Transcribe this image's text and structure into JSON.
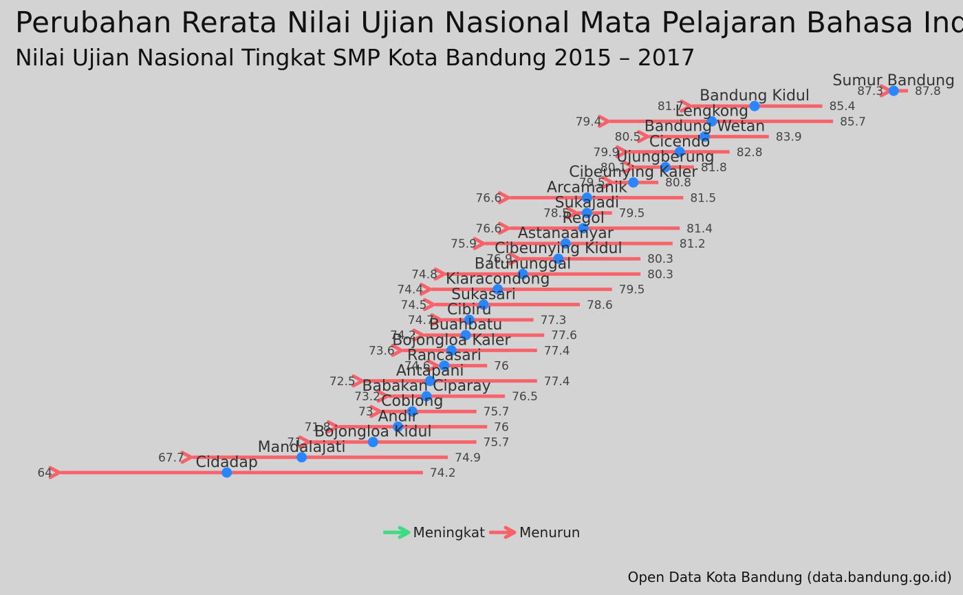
{
  "title": "Perubahan Rerata Nilai Ujian Nasional Mata Pelajaran Bahasa Indonesia",
  "subtitle": "Nilai Ujian Nasional Tingkat SMP Kota Bandung 2015 – 2017",
  "caption": "Open Data Kota Bandung (data.bandung.go.id)",
  "colors": {
    "meningkat": "#3ddc84",
    "menurun": "#f8636b",
    "point": "#2a86ff",
    "background": "#d3d3d3"
  },
  "legend": {
    "items": [
      {
        "label": "Meningkat",
        "color": "#3ddc84"
      },
      {
        "label": "Menurun",
        "color": "#f8636b"
      }
    ]
  },
  "chart_data": {
    "type": "dumbbell-arrow",
    "title": "Perubahan Rerata Nilai Ujian Nasional Mata Pelajaran Bahasa Indonesia",
    "subtitle": "Nilai Ujian Nasional Tingkat SMP Kota Bandung 2015 – 2017",
    "legend_position": "bottom",
    "grid": false,
    "xlim": [
      60,
      90
    ],
    "rows": [
      {
        "name": "Sumur Bandung",
        "start": 87.8,
        "end": 87.3,
        "mid": 87.4,
        "dir": "Menurun"
      },
      {
        "name": "Bandung Kidul",
        "start": 85.4,
        "end": 81.7,
        "mid": 83.5,
        "dir": "Menurun"
      },
      {
        "name": "Lengkong",
        "start": 85.7,
        "end": 79.4,
        "mid": 82.3,
        "dir": "Menurun"
      },
      {
        "name": "Bandung Wetan",
        "start": 83.9,
        "end": 80.5,
        "mid": 82.1,
        "dir": "Menurun"
      },
      {
        "name": "Cicendo",
        "start": 82.8,
        "end": 79.9,
        "mid": 81.4,
        "dir": "Menurun"
      },
      {
        "name": "Ujungberung",
        "start": 81.8,
        "end": 80.1,
        "mid": 81.0,
        "dir": "Menurun"
      },
      {
        "name": "Cibeunying Kaler",
        "start": 80.8,
        "end": 79.5,
        "mid": 80.1,
        "dir": "Menurun"
      },
      {
        "name": "Arcamanik",
        "start": 81.5,
        "end": 76.6,
        "mid": 78.8,
        "dir": "Menurun"
      },
      {
        "name": "Sukajadi",
        "start": 79.5,
        "end": 78.5,
        "mid": 78.8,
        "dir": "Menurun"
      },
      {
        "name": "Regol",
        "start": 81.4,
        "end": 76.6,
        "mid": 78.7,
        "dir": "Menurun"
      },
      {
        "name": "Astanaanyar",
        "start": 81.2,
        "end": 75.9,
        "mid": 78.2,
        "dir": "Menurun"
      },
      {
        "name": "Cibeunying Kidul",
        "start": 80.3,
        "end": 76.9,
        "mid": 78.0,
        "dir": "Menurun"
      },
      {
        "name": "Batununggal",
        "start": 80.3,
        "end": 74.8,
        "mid": 77.0,
        "dir": "Menurun"
      },
      {
        "name": "Kiaracondong",
        "start": 79.5,
        "end": 74.4,
        "mid": 76.3,
        "dir": "Menurun"
      },
      {
        "name": "Sukasari",
        "start": 78.6,
        "end": 74.5,
        "mid": 75.9,
        "dir": "Menurun"
      },
      {
        "name": "Cibiru",
        "start": 77.3,
        "end": 74.7,
        "mid": 75.5,
        "dir": "Menurun"
      },
      {
        "name": "Buahbatu",
        "start": 77.6,
        "end": 74.2,
        "mid": 75.4,
        "dir": "Menurun"
      },
      {
        "name": "Bojongloa Kaler",
        "start": 77.4,
        "end": 73.6,
        "mid": 75.0,
        "dir": "Menurun"
      },
      {
        "name": "Rancasari",
        "start": 76,
        "end": 74.6,
        "mid": 74.8,
        "dir": "Menurun"
      },
      {
        "name": "Antapani",
        "start": 77.4,
        "end": 72.5,
        "mid": 74.4,
        "dir": "Menurun"
      },
      {
        "name": "Babakan Ciparay",
        "start": 76.5,
        "end": 73.2,
        "mid": 74.3,
        "dir": "Menurun"
      },
      {
        "name": "Coblong",
        "start": 75.7,
        "end": 73,
        "mid": 73.9,
        "dir": "Menurun"
      },
      {
        "name": "Andir",
        "start": 76,
        "end": 71.8,
        "mid": 73.5,
        "dir": "Menurun"
      },
      {
        "name": "Bojongloa Kidul",
        "start": 75.7,
        "end": 71,
        "mid": 72.8,
        "dir": "Menurun"
      },
      {
        "name": "Mandalajati",
        "start": 74.9,
        "end": 67.7,
        "mid": 70.8,
        "dir": "Menurun"
      },
      {
        "name": "Cidadap",
        "start": 74.2,
        "end": 64,
        "mid": 68.7,
        "dir": "Menurun"
      }
    ]
  }
}
